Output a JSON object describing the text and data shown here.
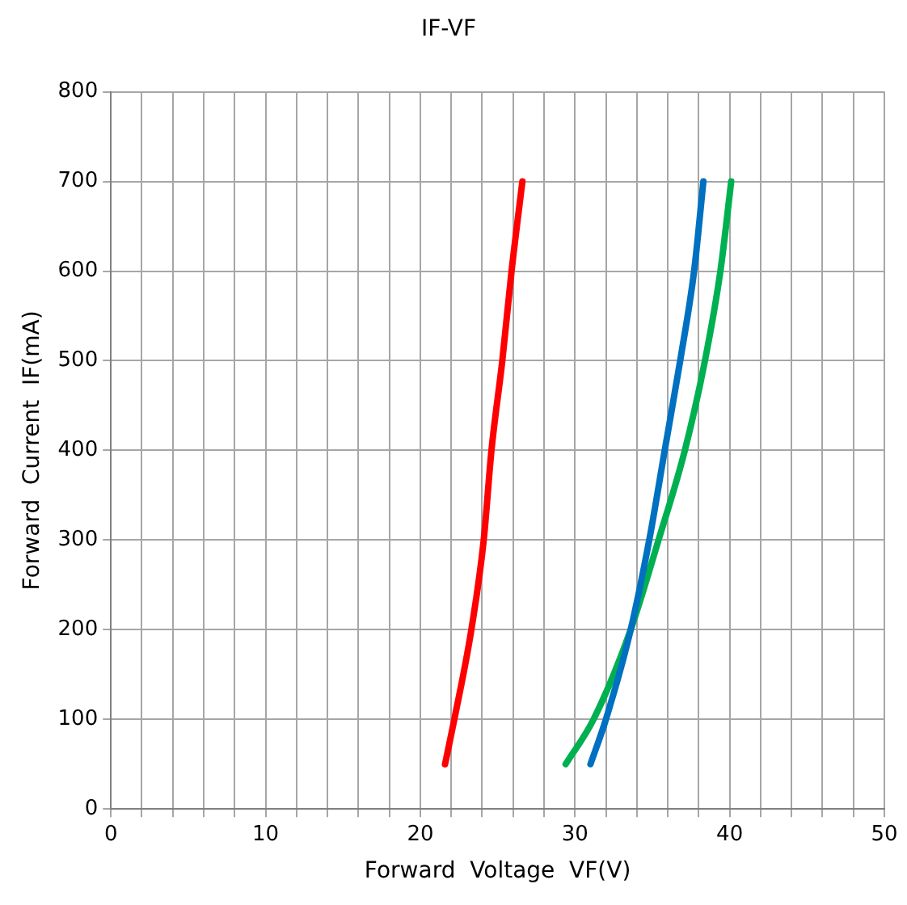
{
  "chart_data": {
    "type": "line",
    "title": "IF-VF",
    "xlabel": "Forward  Voltage  VF(V)",
    "ylabel": "Forward  Current  IF(mA)",
    "xlim": [
      0,
      50
    ],
    "ylim": [
      0,
      800
    ],
    "xticks": [
      0,
      {
        "value": 2,
        "label": null
      },
      {
        "value": 4,
        "label": null
      },
      {
        "value": 6,
        "label": null
      },
      {
        "value": 8,
        "label": null
      },
      10,
      {
        "value": 12,
        "label": null
      },
      {
        "value": 14,
        "label": null
      },
      {
        "value": 16,
        "label": null
      },
      {
        "value": 18,
        "label": null
      },
      20,
      {
        "value": 22,
        "label": null
      },
      {
        "value": 24,
        "label": null
      },
      {
        "value": 26,
        "label": null
      },
      {
        "value": 28,
        "label": null
      },
      30,
      {
        "value": 32,
        "label": null
      },
      {
        "value": 34,
        "label": null
      },
      {
        "value": 36,
        "label": null
      },
      {
        "value": 38,
        "label": null
      },
      40,
      {
        "value": 42,
        "label": null
      },
      {
        "value": 44,
        "label": null
      },
      {
        "value": 46,
        "label": null
      },
      {
        "value": 48,
        "label": null
      },
      50
    ],
    "yticks": [
      0,
      100,
      200,
      300,
      400,
      500,
      600,
      700,
      800
    ],
    "grid": true,
    "legend": false,
    "marker": "none",
    "line_style": "solid",
    "series": [
      {
        "color": "#ff0000",
        "x": [
          21.6,
          22.2,
          23.3,
          24.1,
          24.6,
          25.3,
          25.9,
          26.6
        ],
        "values": [
          50,
          100,
          200,
          300,
          400,
          500,
          600,
          700
        ]
      },
      {
        "color": "#0070c0",
        "x": [
          31.0,
          32.0,
          33.6,
          34.8,
          35.8,
          36.8,
          37.7,
          38.3
        ],
        "values": [
          50,
          100,
          200,
          300,
          400,
          500,
          600,
          700
        ]
      },
      {
        "color": "#00b050",
        "x": [
          29.4,
          31.2,
          33.6,
          35.4,
          37.1,
          38.4,
          39.4,
          40.1
        ],
        "values": [
          50,
          100,
          200,
          300,
          400,
          500,
          600,
          700
        ]
      }
    ]
  }
}
